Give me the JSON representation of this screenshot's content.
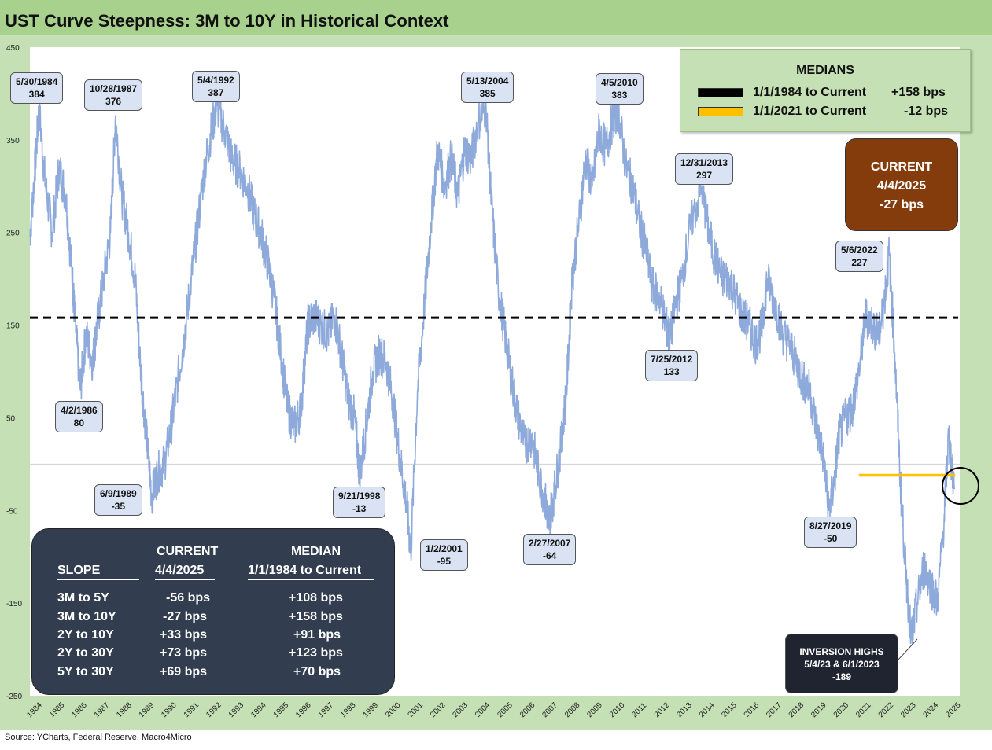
{
  "title": "UST Curve Steepness: 3M to 10Y in Historical Context",
  "source": "Source: YCharts, Federal Reserve, Macro4Micro",
  "colors": {
    "line": "#8eaadb",
    "frame": "#c5e0b4",
    "title_bar": "#a9d18e",
    "median_full": "#000000",
    "median_recent": "#ffc000",
    "current_box": "#843c0c",
    "table_box": "#323e4f"
  },
  "chart_data": {
    "type": "line",
    "title": "UST Curve Steepness: 3M to 10Y in Historical Context",
    "xlabel": "",
    "ylabel": "",
    "ylim": [
      -250,
      450
    ],
    "xlim": [
      1984,
      2025.5
    ],
    "y_ticks": [
      450,
      350,
      250,
      150,
      50,
      -50,
      -150,
      -250
    ],
    "x_tick_labels": [
      "1984",
      "1985",
      "1986",
      "1987",
      "1988",
      "1989",
      "1990",
      "1991",
      "1992",
      "1993",
      "1994",
      "1995",
      "1996",
      "1997",
      "1998",
      "1999",
      "2000",
      "2001",
      "2002",
      "2003",
      "2004",
      "2005",
      "2006",
      "2007",
      "2008",
      "2009",
      "2010",
      "2011",
      "2012",
      "2013",
      "2014",
      "2015",
      "2016",
      "2017",
      "2018",
      "2019",
      "2020",
      "2021",
      "2022",
      "2023",
      "2024",
      "2025"
    ],
    "grid": false,
    "series": [
      {
        "name": "3M to 10Y",
        "points": [
          [
            1984.0,
            245
          ],
          [
            1984.2,
            310
          ],
          [
            1984.41,
            384
          ],
          [
            1984.7,
            300
          ],
          [
            1985.0,
            250
          ],
          [
            1985.3,
            320
          ],
          [
            1985.6,
            290
          ],
          [
            1985.9,
            200
          ],
          [
            1986.0,
            160
          ],
          [
            1986.25,
            80
          ],
          [
            1986.5,
            140
          ],
          [
            1986.8,
            110
          ],
          [
            1987.0,
            150
          ],
          [
            1987.3,
            200
          ],
          [
            1987.6,
            250
          ],
          [
            1987.82,
            376
          ],
          [
            1988.1,
            290
          ],
          [
            1988.4,
            250
          ],
          [
            1988.7,
            200
          ],
          [
            1988.95,
            100
          ],
          [
            1989.2,
            30
          ],
          [
            1989.44,
            -35
          ],
          [
            1989.7,
            -10
          ],
          [
            1990.0,
            0
          ],
          [
            1990.3,
            40
          ],
          [
            1990.6,
            90
          ],
          [
            1990.9,
            140
          ],
          [
            1991.2,
            200
          ],
          [
            1991.5,
            260
          ],
          [
            1991.8,
            320
          ],
          [
            1992.1,
            360
          ],
          [
            1992.34,
            387
          ],
          [
            1992.7,
            360
          ],
          [
            1993.0,
            330
          ],
          [
            1993.3,
            320
          ],
          [
            1993.7,
            300
          ],
          [
            1994.0,
            270
          ],
          [
            1994.3,
            250
          ],
          [
            1994.6,
            220
          ],
          [
            1994.9,
            180
          ],
          [
            1995.2,
            120
          ],
          [
            1995.5,
            60
          ],
          [
            1995.8,
            40
          ],
          [
            1996.1,
            60
          ],
          [
            1996.4,
            150
          ],
          [
            1996.7,
            160
          ],
          [
            1997.0,
            150
          ],
          [
            1997.3,
            140
          ],
          [
            1997.6,
            160
          ],
          [
            1997.9,
            120
          ],
          [
            1998.2,
            70
          ],
          [
            1998.5,
            50
          ],
          [
            1998.72,
            -13
          ],
          [
            1999.0,
            40
          ],
          [
            1999.3,
            100
          ],
          [
            1999.6,
            120
          ],
          [
            1999.9,
            110
          ],
          [
            2000.2,
            70
          ],
          [
            2000.5,
            10
          ],
          [
            2000.8,
            -40
          ],
          [
            2001.0,
            -95
          ],
          [
            2001.3,
            80
          ],
          [
            2001.6,
            170
          ],
          [
            2001.9,
            260
          ],
          [
            2002.2,
            340
          ],
          [
            2002.5,
            300
          ],
          [
            2002.8,
            330
          ],
          [
            2003.1,
            290
          ],
          [
            2003.4,
            340
          ],
          [
            2003.7,
            330
          ],
          [
            2004.0,
            370
          ],
          [
            2004.36,
            385
          ],
          [
            2004.6,
            280
          ],
          [
            2004.9,
            190
          ],
          [
            2005.2,
            140
          ],
          [
            2005.5,
            90
          ],
          [
            2005.8,
            50
          ],
          [
            2006.1,
            20
          ],
          [
            2006.4,
            30
          ],
          [
            2006.7,
            -10
          ],
          [
            2007.0,
            -40
          ],
          [
            2007.16,
            -64
          ],
          [
            2007.4,
            -30
          ],
          [
            2007.7,
            20
          ],
          [
            2007.95,
            80
          ],
          [
            2008.2,
            200
          ],
          [
            2008.5,
            260
          ],
          [
            2008.8,
            330
          ],
          [
            2009.1,
            300
          ],
          [
            2009.4,
            360
          ],
          [
            2009.7,
            340
          ],
          [
            2010.0,
            370
          ],
          [
            2010.26,
            383
          ],
          [
            2010.6,
            320
          ],
          [
            2010.9,
            300
          ],
          [
            2011.2,
            260
          ],
          [
            2011.5,
            230
          ],
          [
            2011.8,
            190
          ],
          [
            2012.1,
            180
          ],
          [
            2012.4,
            150
          ],
          [
            2012.56,
            133
          ],
          [
            2012.8,
            170
          ],
          [
            2013.1,
            200
          ],
          [
            2013.5,
            260
          ],
          [
            2013.99,
            297
          ],
          [
            2014.3,
            250
          ],
          [
            2014.6,
            220
          ],
          [
            2014.9,
            200
          ],
          [
            2015.2,
            200
          ],
          [
            2015.5,
            180
          ],
          [
            2015.8,
            160
          ],
          [
            2016.1,
            150
          ],
          [
            2016.4,
            130
          ],
          [
            2016.7,
            150
          ],
          [
            2016.9,
            200
          ],
          [
            2017.3,
            170
          ],
          [
            2017.6,
            140
          ],
          [
            2017.9,
            130
          ],
          [
            2018.2,
            110
          ],
          [
            2018.5,
            90
          ],
          [
            2018.8,
            80
          ],
          [
            2019.1,
            40
          ],
          [
            2019.4,
            10
          ],
          [
            2019.65,
            -50
          ],
          [
            2019.9,
            -20
          ],
          [
            2020.1,
            30
          ],
          [
            2020.4,
            50
          ],
          [
            2020.7,
            60
          ],
          [
            2021.0,
            100
          ],
          [
            2021.3,
            160
          ],
          [
            2021.6,
            150
          ],
          [
            2021.9,
            140
          ],
          [
            2022.1,
            170
          ],
          [
            2022.35,
            227
          ],
          [
            2022.6,
            120
          ],
          [
            2022.85,
            -20
          ],
          [
            2023.1,
            -120
          ],
          [
            2023.34,
            -189
          ],
          [
            2023.6,
            -150
          ],
          [
            2023.9,
            -110
          ],
          [
            2024.2,
            -130
          ],
          [
            2024.5,
            -150
          ],
          [
            2024.8,
            -60
          ],
          [
            2025.0,
            30
          ],
          [
            2025.26,
            -27
          ]
        ]
      }
    ],
    "medians": [
      {
        "label": "1/1/1984 to Current",
        "value": 158,
        "display": "+158 bps",
        "color": "#000000",
        "range": [
          1984,
          2025.5
        ]
      },
      {
        "label": "1/1/2021 to Current",
        "value": -12,
        "display": "-12 bps",
        "color": "#ffc000",
        "range": [
          2021,
          2025.3
        ]
      }
    ],
    "zero_line": 0,
    "annotations": [
      {
        "date": "5/30/1984",
        "value": "384",
        "x": 1984.41,
        "y": 384
      },
      {
        "date": "10/28/1987",
        "value": "376",
        "x": 1987.82,
        "y": 376
      },
      {
        "date": "5/4/1992",
        "value": "387",
        "x": 1992.34,
        "y": 387
      },
      {
        "date": "5/13/2004",
        "value": "385",
        "x": 2004.36,
        "y": 385
      },
      {
        "date": "4/5/2010",
        "value": "383",
        "x": 2010.26,
        "y": 383
      },
      {
        "date": "12/31/2013",
        "value": "297",
        "x": 2013.99,
        "y": 297
      },
      {
        "date": "5/6/2022",
        "value": "227",
        "x": 2022.35,
        "y": 227
      },
      {
        "date": "7/25/2012",
        "value": "133",
        "x": 2012.56,
        "y": 133
      },
      {
        "date": "4/2/1986",
        "value": "80",
        "x": 1986.25,
        "y": 80
      },
      {
        "date": "6/9/1989",
        "value": "-35",
        "x": 1989.44,
        "y": -35
      },
      {
        "date": "9/21/1998",
        "value": "-13",
        "x": 1998.72,
        "y": -13
      },
      {
        "date": "1/2/2001",
        "value": "-95",
        "x": 2001.0,
        "y": -95
      },
      {
        "date": "2/27/2007",
        "value": "-64",
        "x": 2007.16,
        "y": -64
      },
      {
        "date": "8/27/2019",
        "value": "-50",
        "x": 2019.65,
        "y": -50
      }
    ]
  },
  "medians_box": {
    "title": "MEDIANS",
    "rows": [
      {
        "label": "1/1/1984 to Current",
        "value": "+158 bps"
      },
      {
        "label": "1/1/2021 to Current",
        "value": "-12 bps"
      }
    ]
  },
  "current_box": {
    "line1": "CURRENT",
    "line2": "4/4/2025",
    "line3": "-27 bps"
  },
  "slope_table": {
    "header_current": "CURRENT",
    "header_current_date": "4/4/2025",
    "header_median": "MEDIAN",
    "header_median_range": "1/1/1984 to Current",
    "header_slope": "SLOPE",
    "rows": [
      {
        "slope": "3M to 5Y",
        "current": "-56 bps",
        "median": "+108 bps"
      },
      {
        "slope": "3M to 10Y",
        "current": "-27 bps",
        "median": "+158 bps"
      },
      {
        "slope": "2Y to 10Y",
        "current": "+33 bps",
        "median": "+91 bps"
      },
      {
        "slope": "2Y to 30Y",
        "current": "+73 bps",
        "median": "+123 bps"
      },
      {
        "slope": "5Y to 30Y",
        "current": "+69 bps",
        "median": "+70 bps"
      }
    ]
  },
  "inversion_box": {
    "line1": "INVERSION HIGHS",
    "line2": "5/4/23 & 6/1/2023",
    "line3": "-189"
  }
}
